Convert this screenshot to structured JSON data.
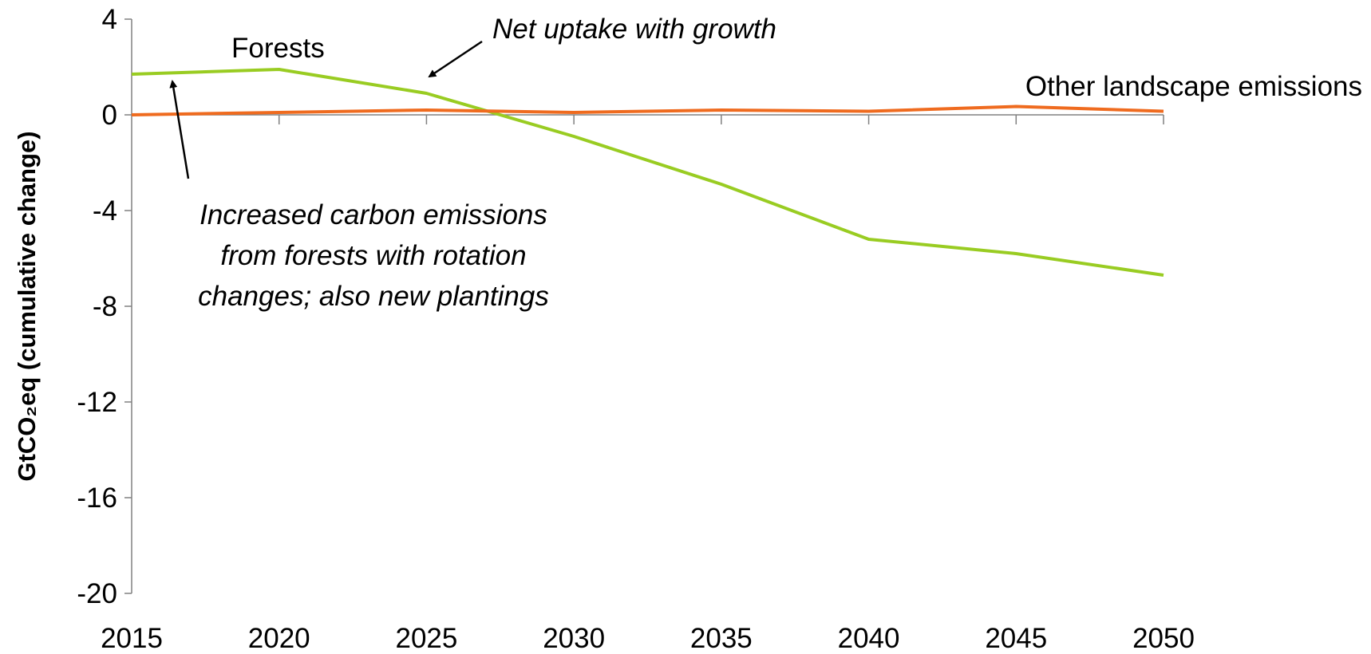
{
  "chart_data": {
    "type": "line",
    "ylabel": "GtCO₂eq (cumulative change)",
    "x": [
      2015,
      2020,
      2025,
      2030,
      2035,
      2040,
      2045,
      2050
    ],
    "xticks": [
      "2015",
      "2020",
      "2025",
      "2030",
      "2035",
      "2040",
      "2045",
      "2050"
    ],
    "yticks": [
      "4",
      "0",
      "-4",
      "-8",
      "-12",
      "-16",
      "-20"
    ],
    "ylim": [
      -20,
      4
    ],
    "grid": false,
    "series": [
      {
        "name": "Forests",
        "color": "#99cc22",
        "values": [
          1.7,
          1.9,
          0.9,
          -0.9,
          -2.9,
          -5.2,
          -5.8,
          -6.7
        ]
      },
      {
        "name": "Other landscape emissions",
        "color": "#ef6b1f",
        "values": [
          0.0,
          0.1,
          0.2,
          0.1,
          0.2,
          0.15,
          0.35,
          0.15
        ]
      }
    ],
    "annotations": {
      "net_uptake": "Net uptake with growth",
      "increased_emissions": [
        "Increased carbon emissions",
        "from forests with rotation",
        "changes; also new plantings"
      ]
    }
  }
}
